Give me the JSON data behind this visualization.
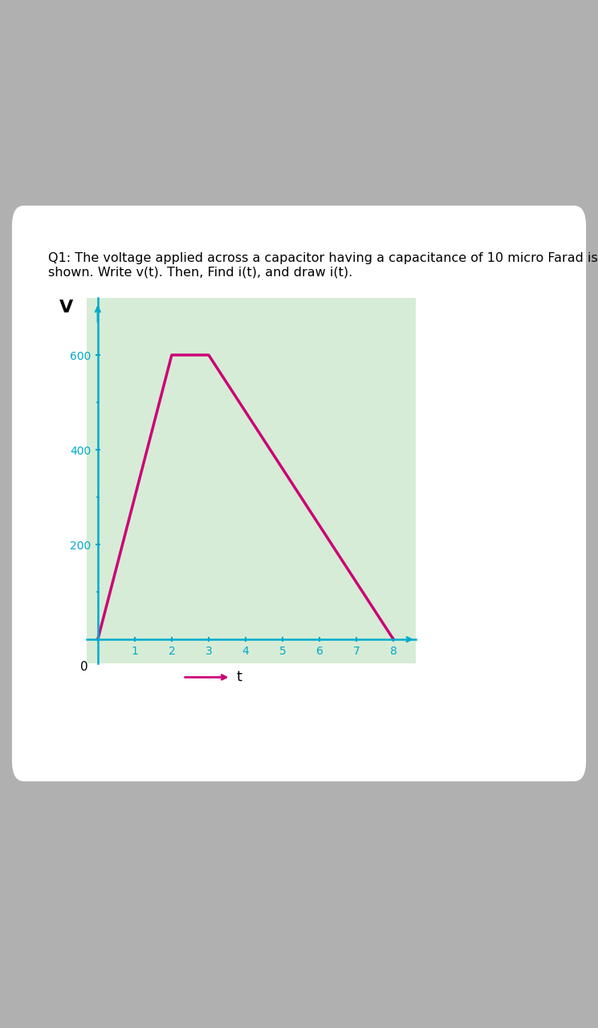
{
  "title_text": "Q1: The voltage applied across a capacitor having a capacitance of 10 micro Farad is\nshown. Write v(t). Then, Find i(t), and draw i(t).",
  "plot_bg_color": "#d6ecd6",
  "waveform_color": "#cc0077",
  "waveform_linewidth": 2.5,
  "axis_color": "#00aacc",
  "tick_color": "#00aacc",
  "v_points_t": [
    0,
    2,
    3,
    8
  ],
  "v_points_v": [
    0,
    600,
    600,
    0
  ],
  "xlim": [
    -0.3,
    8.6
  ],
  "ylim": [
    -50,
    720
  ],
  "yticks": [
    0,
    200,
    400,
    600
  ],
  "xticks": [
    0,
    1,
    2,
    3,
    4,
    5,
    6,
    7,
    8
  ],
  "xlabel": "t",
  "ylabel": "V",
  "card_bg": "#ffffff",
  "fig_bg": "#b0b0b0",
  "title_fontsize": 11.5,
  "tick_fontsize": 11,
  "label_fontsize": 13,
  "axis_linewidth": 1.8,
  "zero_label": "0"
}
